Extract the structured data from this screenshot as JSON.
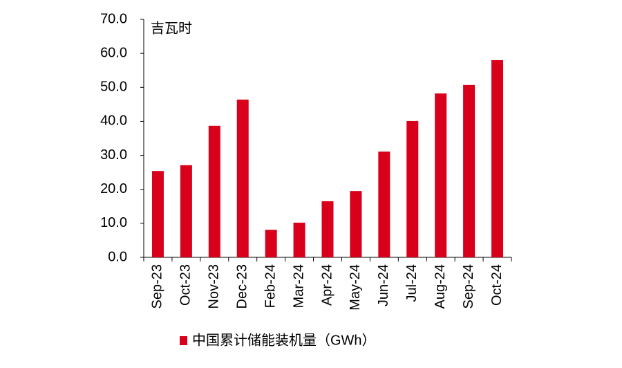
{
  "chart_data": {
    "type": "bar",
    "unit_label": "吉瓦时",
    "categories": [
      "Sep-23",
      "Oct-23",
      "Nov-23",
      "Dec-23",
      "Feb-24",
      "Mar-24",
      "Apr-24",
      "May-24",
      "Jun-24",
      "Jul-24",
      "Aug-24",
      "Sep-24",
      "Oct-24"
    ],
    "series": [
      {
        "name": "中国累计储能装机量（GWh）",
        "color": "#d9001b",
        "values": [
          25.4,
          27.1,
          38.7,
          46.4,
          8.1,
          10.2,
          16.5,
          19.5,
          31.1,
          40.1,
          48.2,
          50.7,
          58.0
        ]
      }
    ],
    "ylim": [
      0,
      70
    ],
    "yticks": [
      {
        "value": 0,
        "label": "0.0"
      },
      {
        "value": 10,
        "label": "10.0"
      },
      {
        "value": 20,
        "label": "20.0"
      },
      {
        "value": 30,
        "label": "30.0"
      },
      {
        "value": 40,
        "label": "40.0"
      },
      {
        "value": 50,
        "label": "50.0"
      },
      {
        "value": 60,
        "label": "60.0"
      },
      {
        "value": 70,
        "label": "70.0"
      }
    ],
    "grid": false
  }
}
